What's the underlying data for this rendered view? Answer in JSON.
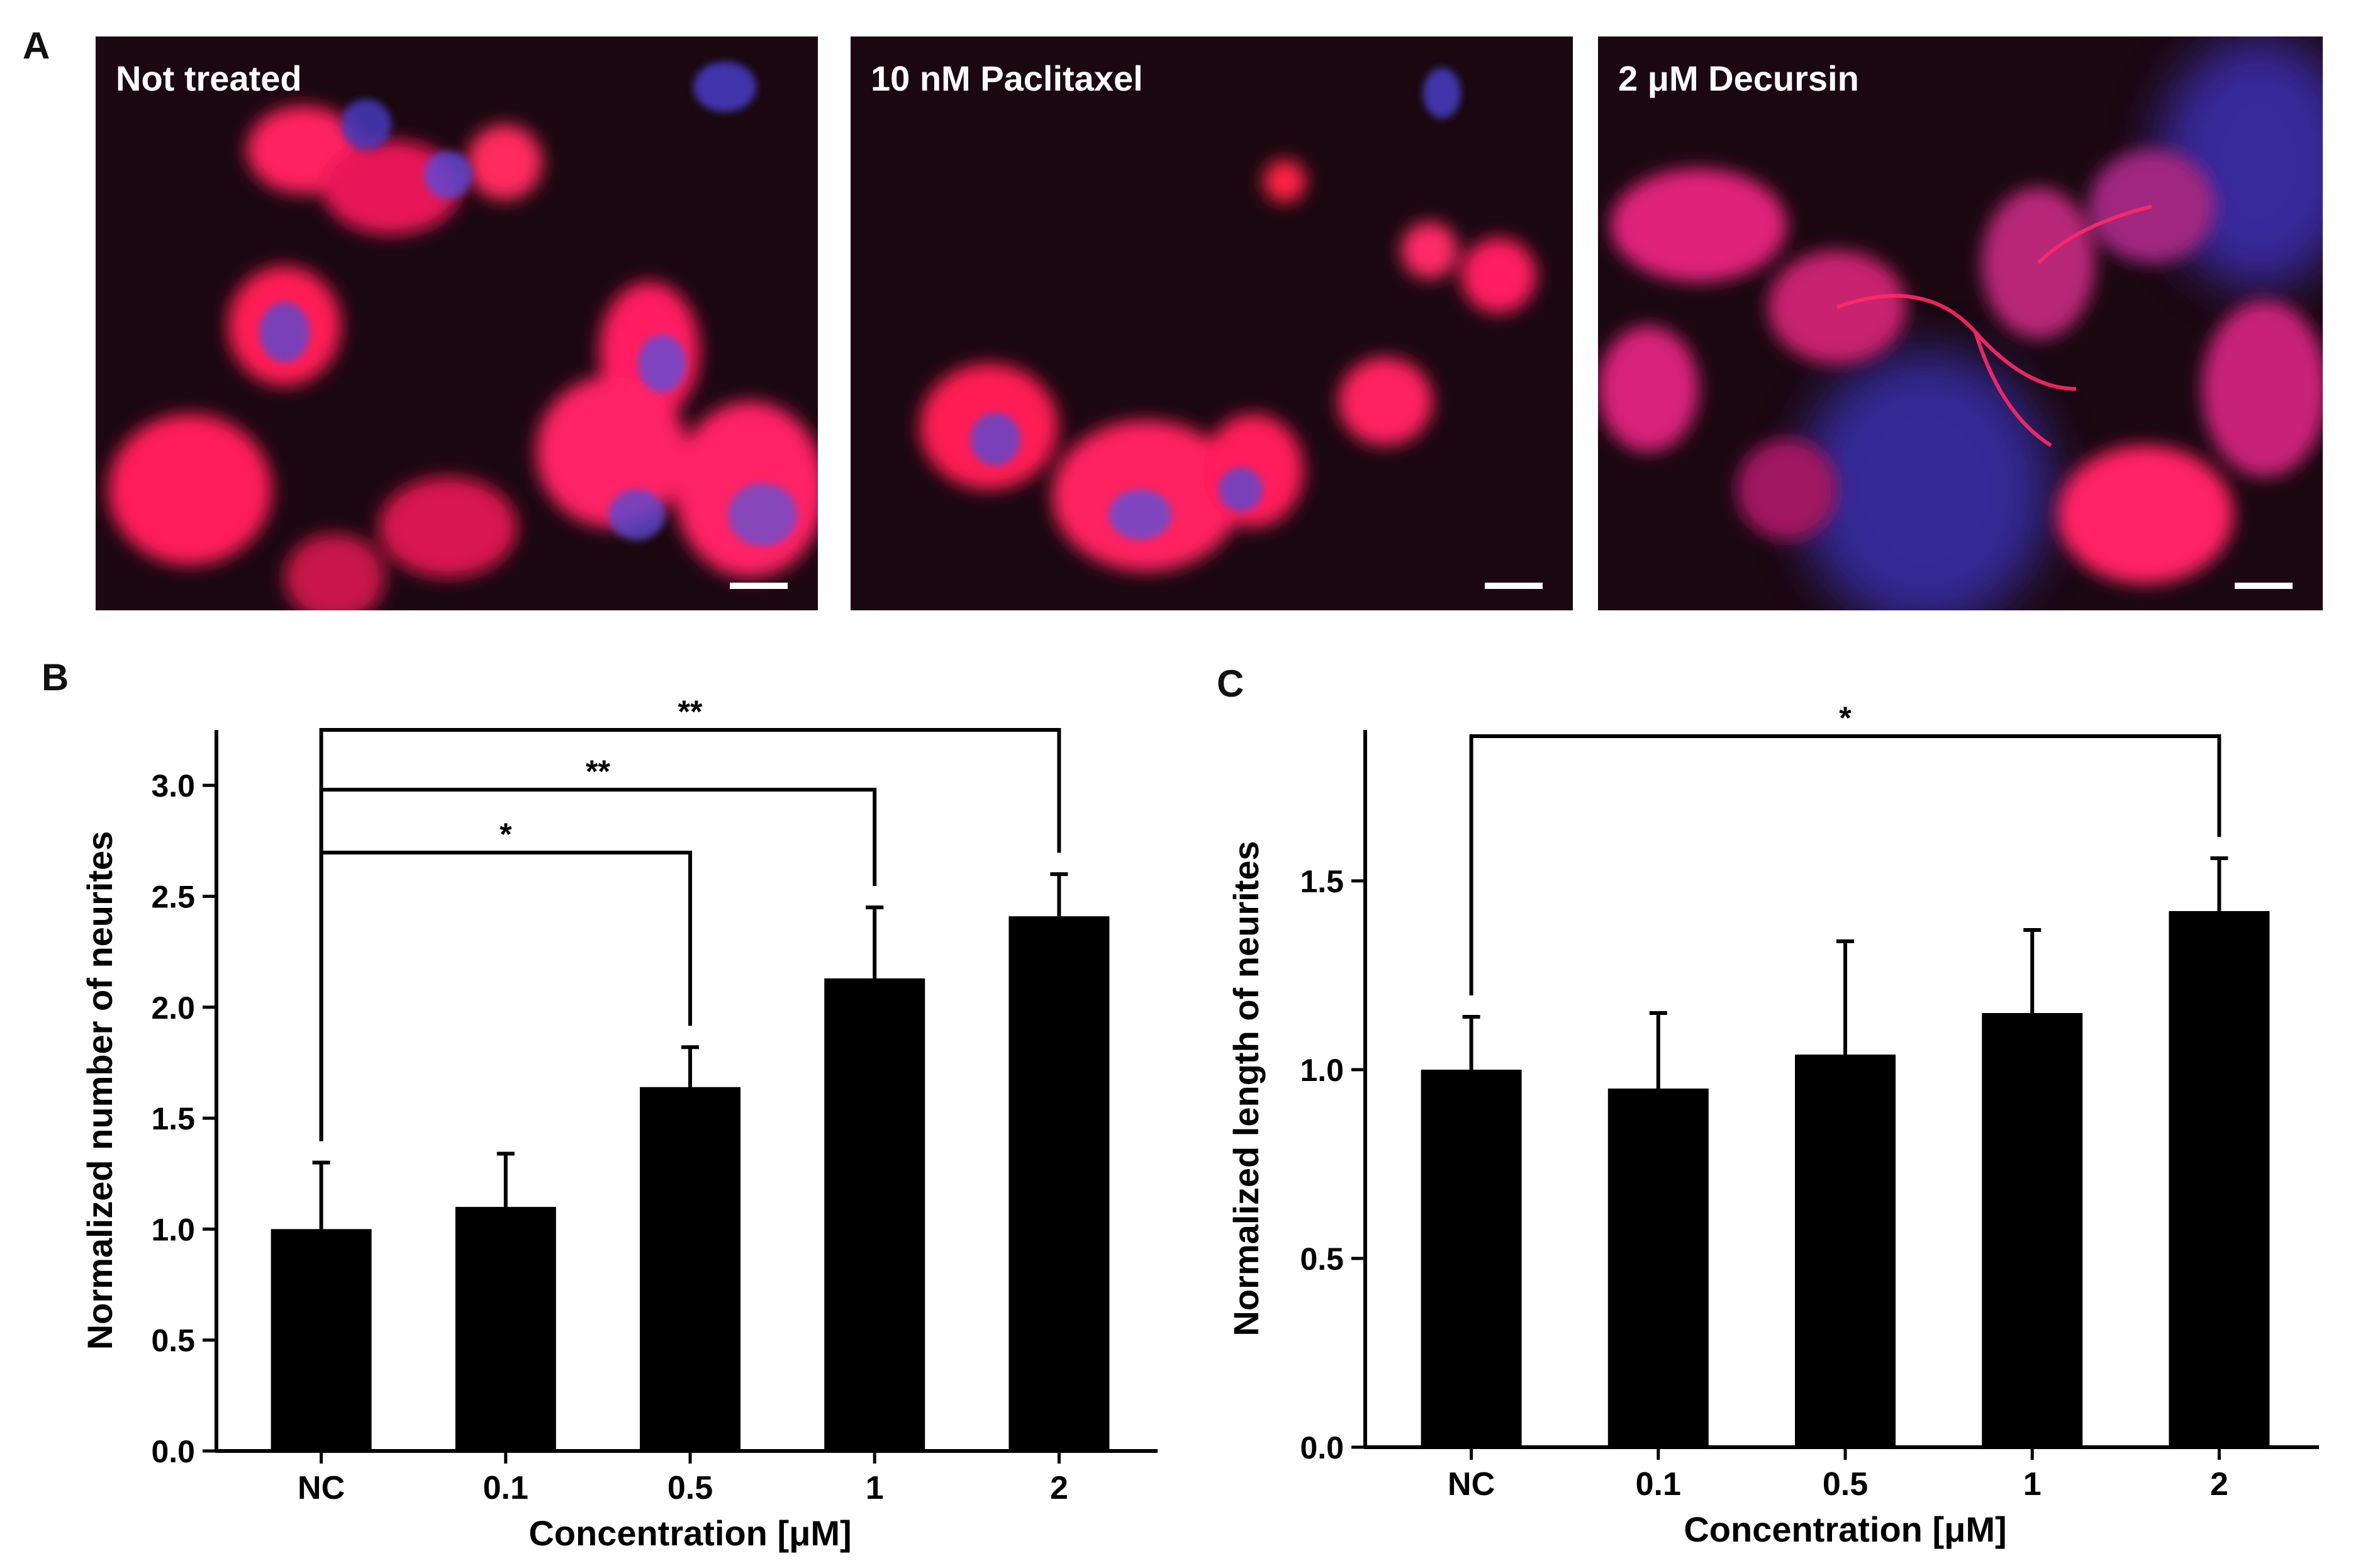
{
  "panels": {
    "a": "A",
    "b": "B",
    "c": "C"
  },
  "micrographs": [
    {
      "label": "Not treated",
      "tint": "#e8185a"
    },
    {
      "label": "10 nM Paclitaxel",
      "tint": "#ea1a55"
    },
    {
      "label": "2 μM Decursin",
      "tint": "#d8207a"
    }
  ],
  "colors": {
    "bar": "#000000",
    "micro_bg": "#1b0810",
    "actin_red": "#ff1e55",
    "nucleus_blue": "#4a3cc8"
  },
  "chart_data": [
    {
      "type": "bar",
      "panel": "B",
      "categories": [
        "NC",
        "0.1",
        "0.5",
        "1",
        "2"
      ],
      "values": [
        1.0,
        1.1,
        1.64,
        2.13,
        2.41
      ],
      "errors": [
        0.3,
        0.24,
        0.18,
        0.32,
        0.19
      ],
      "xlabel": "Concentration [μM]",
      "ylabel": "Normalized number of neurites",
      "ylim": [
        0,
        3.25
      ],
      "yticks": [
        "0.0",
        "0.5",
        "1.0",
        "1.5",
        "2.0",
        "2.5",
        "3.0"
      ],
      "significance": [
        {
          "from": "NC",
          "to": "0.5",
          "label": "*"
        },
        {
          "from": "NC",
          "to": "1",
          "label": "**"
        },
        {
          "from": "NC",
          "to": "2",
          "label": "**"
        }
      ]
    },
    {
      "type": "bar",
      "panel": "C",
      "categories": [
        "NC",
        "0.1",
        "0.5",
        "1",
        "2"
      ],
      "values": [
        1.0,
        0.95,
        1.04,
        1.15,
        1.42
      ],
      "errors": [
        0.14,
        0.2,
        0.3,
        0.22,
        0.14
      ],
      "xlabel": "Concentration [μM]",
      "ylabel": "Normalized length of neurites",
      "ylim": [
        0,
        1.9
      ],
      "yticks": [
        "0.0",
        "0.5",
        "1.0",
        "1.5"
      ],
      "significance": [
        {
          "from": "NC",
          "to": "2",
          "label": "*"
        }
      ]
    }
  ]
}
